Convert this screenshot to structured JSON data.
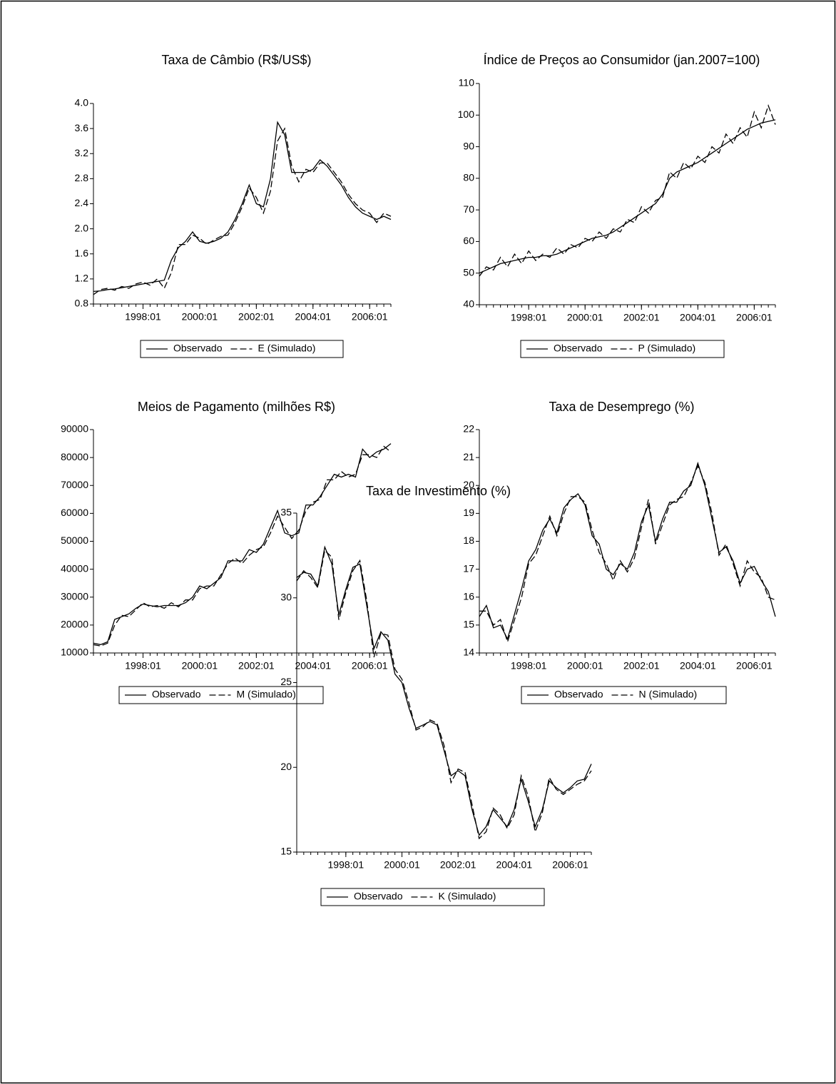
{
  "chart_data": [
    {
      "type": "line",
      "title": "Taxa de Câmbio (R$/US$)",
      "categories": [
        "1996:04",
        "1996:07",
        "1996:10",
        "1997:01",
        "1997:04",
        "1997:07",
        "1997:10",
        "1998:01",
        "1998:04",
        "1998:07",
        "1998:10",
        "1999:01",
        "1999:04",
        "1999:07",
        "1999:10",
        "2000:01",
        "2000:04",
        "2000:07",
        "2000:10",
        "2001:01",
        "2001:04",
        "2001:07",
        "2001:10",
        "2002:01",
        "2002:04",
        "2002:07",
        "2002:10",
        "2003:01",
        "2003:04",
        "2003:07",
        "2003:10",
        "2004:01",
        "2004:04",
        "2004:07",
        "2004:10",
        "2005:01",
        "2005:04",
        "2005:07",
        "2005:10",
        "2006:01",
        "2006:04",
        "2006:07",
        "2006:10"
      ],
      "xticks": [
        "1998:01",
        "2000:01",
        "2002:01",
        "2004:01",
        "2006:01"
      ],
      "ylim": [
        0.8,
        4.0
      ],
      "yticks": [
        0.8,
        1.2,
        1.6,
        {
          "value": 2,
          "label": "2.0"
        },
        2.4,
        2.8,
        3.2,
        3.6,
        {
          "value": 4,
          "label": "4.0"
        }
      ],
      "series": [
        {
          "name": "Observado",
          "color": "#000000",
          "dash": false,
          "values": [
            1.0,
            1.01,
            1.03,
            1.04,
            1.06,
            1.08,
            1.1,
            1.12,
            1.14,
            1.16,
            1.18,
            1.5,
            1.7,
            1.8,
            1.95,
            1.8,
            1.77,
            1.8,
            1.85,
            1.95,
            2.15,
            2.4,
            2.7,
            2.4,
            2.35,
            2.8,
            3.7,
            3.5,
            2.9,
            2.9,
            2.9,
            2.95,
            3.1,
            3.0,
            2.85,
            2.7,
            2.5,
            2.35,
            2.25,
            2.2,
            2.15,
            2.2,
            2.15
          ]
        },
        {
          "name": "E (Simulado)",
          "color": "#000000",
          "dash": true,
          "values": [
            0.95,
            1.03,
            1.05,
            1.02,
            1.08,
            1.05,
            1.12,
            1.15,
            1.1,
            1.2,
            1.05,
            1.3,
            1.75,
            1.75,
            1.9,
            1.85,
            1.75,
            1.82,
            1.88,
            1.9,
            2.1,
            2.35,
            2.65,
            2.5,
            2.25,
            2.6,
            3.4,
            3.6,
            3.0,
            2.75,
            2.95,
            2.9,
            3.05,
            3.05,
            2.9,
            2.75,
            2.55,
            2.4,
            2.3,
            2.25,
            2.1,
            2.25,
            2.2
          ]
        }
      ]
    },
    {
      "type": "line",
      "title": "Índice de Preços ao Consumidor (jan.2007=100)",
      "categories": [
        "1996:04",
        "1996:07",
        "1996:10",
        "1997:01",
        "1997:04",
        "1997:07",
        "1997:10",
        "1998:01",
        "1998:04",
        "1998:07",
        "1998:10",
        "1999:01",
        "1999:04",
        "1999:07",
        "1999:10",
        "2000:01",
        "2000:04",
        "2000:07",
        "2000:10",
        "2001:01",
        "2001:04",
        "2001:07",
        "2001:10",
        "2002:01",
        "2002:04",
        "2002:07",
        "2002:10",
        "2003:01",
        "2003:04",
        "2003:07",
        "2003:10",
        "2004:01",
        "2004:04",
        "2004:07",
        "2004:10",
        "2005:01",
        "2005:04",
        "2005:07",
        "2005:10",
        "2006:01",
        "2006:04",
        "2006:07",
        "2006:10"
      ],
      "xticks": [
        "1998:01",
        "2000:01",
        "2002:01",
        "2004:01",
        "2006:01"
      ],
      "ylim": [
        40,
        110
      ],
      "yticks": [
        40,
        50,
        60,
        70,
        80,
        90,
        100,
        110
      ],
      "series": [
        {
          "name": "Observado",
          "color": "#000000",
          "dash": false,
          "values": [
            50,
            51,
            52,
            53,
            53.5,
            54,
            54.5,
            55,
            55,
            55.5,
            55.5,
            56,
            57,
            58,
            59,
            60,
            61,
            61.5,
            62,
            63,
            64.5,
            66,
            67.5,
            69,
            70.5,
            72,
            75,
            80,
            82,
            83,
            84,
            85,
            86.5,
            88,
            89.5,
            91,
            92.5,
            94,
            95.5,
            96.5,
            97.5,
            98,
            98.5
          ]
        },
        {
          "name": "P (Simulado)",
          "color": "#000000",
          "dash": true,
          "values": [
            49,
            52,
            51,
            55,
            52,
            56,
            53,
            57,
            54,
            56,
            55,
            58,
            56,
            59,
            58,
            61,
            60,
            63,
            61,
            64,
            63,
            67,
            66,
            71,
            69,
            73,
            74,
            82,
            80,
            85,
            83,
            87,
            85,
            90,
            88,
            94,
            91,
            96,
            93,
            101,
            96,
            103,
            97
          ]
        }
      ]
    },
    {
      "type": "line",
      "title": "Meios de Pagamento (milhões R$)",
      "categories": [
        "1996:04",
        "1996:07",
        "1996:10",
        "1997:01",
        "1997:04",
        "1997:07",
        "1997:10",
        "1998:01",
        "1998:04",
        "1998:07",
        "1998:10",
        "1999:01",
        "1999:04",
        "1999:07",
        "1999:10",
        "2000:01",
        "2000:04",
        "2000:07",
        "2000:10",
        "2001:01",
        "2001:04",
        "2001:07",
        "2001:10",
        "2002:01",
        "2002:04",
        "2002:07",
        "2002:10",
        "2003:01",
        "2003:04",
        "2003:07",
        "2003:10",
        "2004:01",
        "2004:04",
        "2004:07",
        "2004:10",
        "2005:01",
        "2005:04",
        "2005:07",
        "2005:10",
        "2006:01",
        "2006:04",
        "2006:07",
        "2006:10"
      ],
      "xticks": [
        "1998:01",
        "2000:01",
        "2002:01",
        "2004:01",
        "2006:01"
      ],
      "ylim": [
        10000,
        90000
      ],
      "yticks": [
        10000,
        20000,
        30000,
        40000,
        50000,
        60000,
        70000,
        80000,
        90000
      ],
      "series": [
        {
          "name": "Observado",
          "color": "#000000",
          "dash": false,
          "values": [
            13500,
            13000,
            14000,
            22000,
            23000,
            24000,
            26000,
            27500,
            27000,
            26500,
            27000,
            27000,
            27000,
            28000,
            30000,
            34000,
            33000,
            35000,
            37000,
            43000,
            43000,
            43000,
            47000,
            46000,
            49000,
            55000,
            61000,
            53000,
            52000,
            53000,
            63000,
            63000,
            66000,
            70000,
            74000,
            73000,
            74000,
            73000,
            83000,
            80000,
            82000,
            83000,
            85000
          ]
        },
        {
          "name": "M (Simulado)",
          "color": "#000000",
          "dash": true,
          "values": [
            13000,
            12500,
            13500,
            20000,
            23500,
            23000,
            25500,
            28000,
            26500,
            27000,
            26000,
            28000,
            26500,
            29000,
            29000,
            33000,
            34000,
            34000,
            38000,
            42000,
            44000,
            42000,
            45000,
            47000,
            48000,
            53000,
            59000,
            55000,
            51000,
            54000,
            61000,
            64000,
            65000,
            72000,
            72000,
            75000,
            73000,
            74000,
            81000,
            81000,
            80000,
            84000,
            82000
          ]
        }
      ]
    },
    {
      "type": "line",
      "title": "Taxa de Desemprego (%)",
      "categories": [
        "1996:04",
        "1996:07",
        "1996:10",
        "1997:01",
        "1997:04",
        "1997:07",
        "1997:10",
        "1998:01",
        "1998:04",
        "1998:07",
        "1998:10",
        "1999:01",
        "1999:04",
        "1999:07",
        "1999:10",
        "2000:01",
        "2000:04",
        "2000:07",
        "2000:10",
        "2001:01",
        "2001:04",
        "2001:07",
        "2001:10",
        "2002:01",
        "2002:04",
        "2002:07",
        "2002:10",
        "2003:01",
        "2003:04",
        "2003:07",
        "2003:10",
        "2004:01",
        "2004:04",
        "2004:07",
        "2004:10",
        "2005:01",
        "2005:04",
        "2005:07",
        "2005:10",
        "2006:01",
        "2006:04",
        "2006:07",
        "2006:10"
      ],
      "xticks": [
        "1998:01",
        "2000:01",
        "2002:01",
        "2004:01",
        "2006:01"
      ],
      "ylim": [
        14,
        22
      ],
      "yticks": [
        14,
        15,
        16,
        17,
        18,
        19,
        20,
        21,
        22
      ],
      "series": [
        {
          "name": "Observado",
          "color": "#000000",
          "dash": false,
          "values": [
            15.3,
            15.7,
            14.9,
            15.0,
            14.5,
            15.4,
            16.3,
            17.3,
            17.7,
            18.4,
            18.8,
            18.3,
            19.2,
            19.5,
            19.7,
            19.3,
            18.2,
            17.9,
            17.0,
            16.8,
            17.2,
            17.0,
            17.6,
            18.7,
            19.3,
            18.0,
            18.8,
            19.4,
            19.4,
            19.8,
            20.0,
            20.8,
            20.0,
            18.8,
            17.6,
            17.8,
            17.3,
            16.5,
            17.0,
            17.1,
            16.6,
            16.2,
            15.3
          ]
        },
        {
          "name": "N (Simulado)",
          "color": "#000000",
          "dash": true,
          "values": [
            15.5,
            15.5,
            15.0,
            15.2,
            14.4,
            15.2,
            16.0,
            17.2,
            17.5,
            18.2,
            18.9,
            18.2,
            19.0,
            19.6,
            19.6,
            19.4,
            18.4,
            17.6,
            17.2,
            16.6,
            17.3,
            16.9,
            17.4,
            18.5,
            19.5,
            17.9,
            18.6,
            19.3,
            19.5,
            19.6,
            20.1,
            20.7,
            20.1,
            19.0,
            17.5,
            17.9,
            17.2,
            16.4,
            17.3,
            16.9,
            16.7,
            16.0,
            15.9
          ]
        }
      ]
    },
    {
      "type": "line",
      "title": "Taxa de Investimento (%)",
      "categories": [
        "1996:04",
        "1996:07",
        "1996:10",
        "1997:01",
        "1997:04",
        "1997:07",
        "1997:10",
        "1998:01",
        "1998:04",
        "1998:07",
        "1998:10",
        "1999:01",
        "1999:04",
        "1999:07",
        "1999:10",
        "2000:01",
        "2000:04",
        "2000:07",
        "2000:10",
        "2001:01",
        "2001:04",
        "2001:07",
        "2001:10",
        "2002:01",
        "2002:04",
        "2002:07",
        "2002:10",
        "2003:01",
        "2003:04",
        "2003:07",
        "2003:10",
        "2004:01",
        "2004:04",
        "2004:07",
        "2004:10",
        "2005:01",
        "2005:04",
        "2005:07",
        "2005:10",
        "2006:01",
        "2006:04",
        "2006:07",
        "2006:10"
      ],
      "xticks": [
        "1998:01",
        "2000:01",
        "2002:01",
        "2004:01",
        "2006:01"
      ],
      "ylim": [
        15,
        35
      ],
      "yticks": [
        15,
        20,
        25,
        30,
        35
      ],
      "series": [
        {
          "name": "Observado",
          "color": "#000000",
          "dash": false,
          "values": [
            31.2,
            31.5,
            31.4,
            30.7,
            33.0,
            32.0,
            29.0,
            30.5,
            31.8,
            32.0,
            29.5,
            27.0,
            28.0,
            27.5,
            25.5,
            25.0,
            23.5,
            22.3,
            22.5,
            22.7,
            22.5,
            21.0,
            19.5,
            19.8,
            19.5,
            17.5,
            16.0,
            16.5,
            17.5,
            17.0,
            16.5,
            17.5,
            19.3,
            18.0,
            16.5,
            17.5,
            19.2,
            18.8,
            18.5,
            18.8,
            19.2,
            19.3,
            20.2
          ]
        },
        {
          "name": "K (Simulado)",
          "color": "#000000",
          "dash": true,
          "values": [
            31.0,
            31.6,
            31.2,
            30.6,
            32.8,
            32.4,
            28.7,
            30.3,
            31.6,
            32.2,
            29.8,
            26.5,
            27.9,
            27.8,
            25.8,
            25.2,
            23.8,
            22.2,
            22.4,
            22.8,
            22.6,
            21.3,
            19.1,
            19.9,
            19.7,
            17.8,
            15.8,
            16.2,
            17.6,
            17.2,
            16.4,
            17.2,
            19.5,
            18.3,
            16.2,
            17.3,
            19.4,
            18.7,
            18.4,
            18.7,
            19.0,
            19.2,
            19.8
          ]
        }
      ]
    }
  ]
}
